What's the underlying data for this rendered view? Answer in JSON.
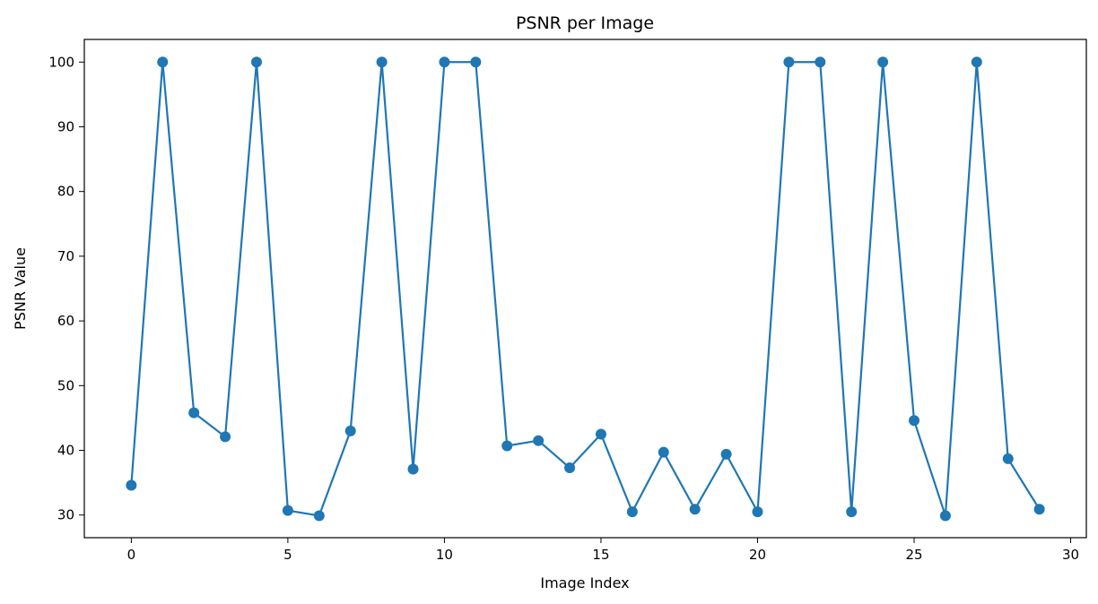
{
  "chart_data": {
    "type": "line",
    "title": "PSNR per Image",
    "xlabel": "Image Index",
    "ylabel": "PSNR Value",
    "xlim": [
      -1.5,
      30.5
    ],
    "ylim": [
      26.5,
      103.5
    ],
    "xticks": [
      0,
      5,
      10,
      15,
      20,
      25,
      30
    ],
    "yticks": [
      30,
      40,
      50,
      60,
      70,
      80,
      90,
      100
    ],
    "grid": false,
    "legend": "none",
    "marker": "circle",
    "series": [
      {
        "color": "#1f77b4",
        "x": [
          0,
          1,
          2,
          3,
          4,
          5,
          6,
          7,
          8,
          9,
          10,
          11,
          12,
          13,
          14,
          15,
          16,
          17,
          18,
          19,
          20,
          21,
          22,
          23,
          24,
          25,
          26,
          27,
          28,
          29
        ],
        "y": [
          34.6,
          100,
          45.8,
          42.1,
          100,
          30.7,
          29.9,
          43.0,
          100,
          37.1,
          100,
          100,
          40.7,
          41.5,
          37.3,
          42.5,
          30.5,
          39.7,
          30.9,
          39.4,
          30.5,
          100,
          100,
          30.5,
          100,
          44.6,
          29.9,
          100,
          38.7,
          30.9
        ]
      }
    ]
  }
}
